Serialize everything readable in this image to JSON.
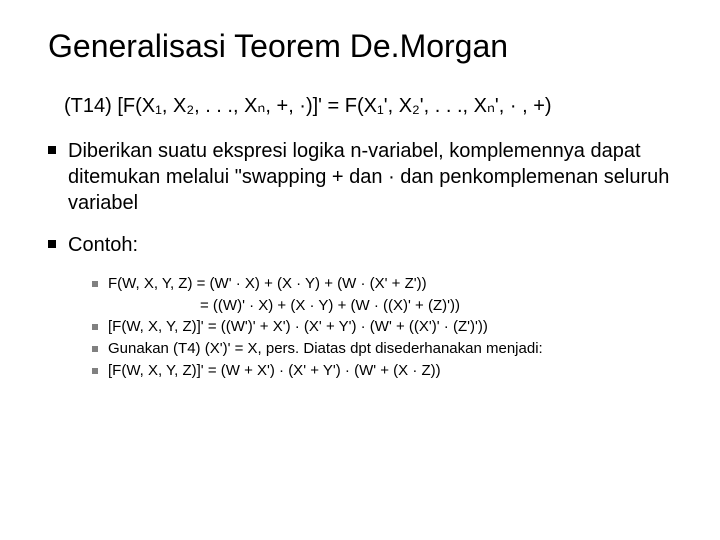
{
  "title": "Generalisasi Teorem De.Morgan",
  "theorem": "(T14)  [F(X₁, X₂, . . ., Xₙ, +, ·)]' = F(X₁', X₂', . . ., Xₙ', · , +)",
  "main_bullets": [
    "Diberikan suatu ekspresi logika n-variabel, komplemennya dapat ditemukan melalui \"swapping + dan ·  dan penkomplemenan seluruh variabel",
    "Contoh:"
  ],
  "sub_bullets": [
    "F(W, X, Y, Z) = (W' · X) + (X · Y) + (W · (X' + Z'))",
    "= ((W)' · X) + (X · Y) + (W · ((X)' + (Z)'))",
    "[F(W, X, Y, Z)]' = ((W')' + X') · (X' + Y') · (W' + ((X')' · (Z')'))",
    "Gunakan (T4) (X')' = X, pers. Diatas dpt disederhanakan menjadi:",
    "[F(W, X, Y, Z)]' = (W + X') · (X' + Y') · (W' + (X · Z))"
  ],
  "colors": {
    "background": "#ffffff",
    "text": "#000000",
    "main_bullet": "#000000",
    "sub_bullet": "#808080"
  },
  "fonts": {
    "title_size": 32,
    "body_size": 20,
    "sub_size": 15,
    "family": "Arial"
  }
}
